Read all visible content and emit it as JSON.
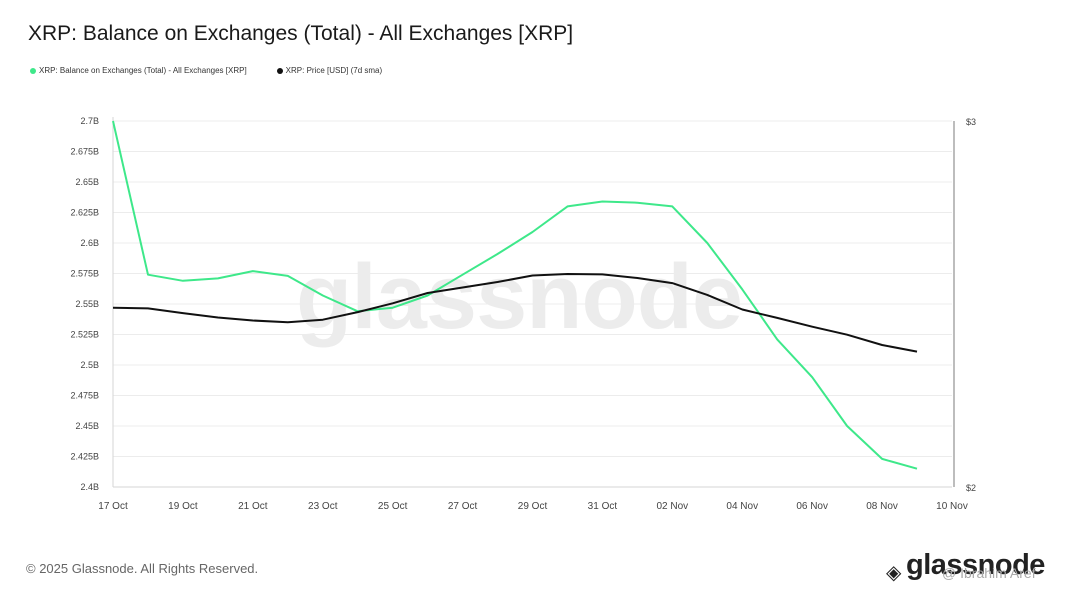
{
  "title": "XRP: Balance on Exchanges (Total) - All Exchanges [XRP]",
  "legend": [
    {
      "label": "XRP: Balance on Exchanges (Total) - All Exchanges [XRP]",
      "color": "#3ee88a"
    },
    {
      "label": "XRP: Price [USD] (7d sma)",
      "color": "#111111"
    }
  ],
  "watermark": "glassnode",
  "footer": "© 2025 Glassnode. All Rights Reserved.",
  "brand": "glassnode",
  "overlay_text": "@ Ibrahim Aref",
  "chart_data": {
    "type": "line",
    "x": [
      "17 Oct",
      "18 Oct",
      "19 Oct",
      "20 Oct",
      "21 Oct",
      "22 Oct",
      "23 Oct",
      "24 Oct",
      "25 Oct",
      "26 Oct",
      "27 Oct",
      "28 Oct",
      "29 Oct",
      "30 Oct",
      "31 Oct",
      "01 Nov",
      "02 Nov",
      "03 Nov",
      "04 Nov",
      "05 Nov",
      "06 Nov",
      "07 Nov",
      "08 Nov",
      "09 Nov"
    ],
    "x_tick_labels": [
      "17 Oct",
      "19 Oct",
      "21 Oct",
      "23 Oct",
      "25 Oct",
      "27 Oct",
      "29 Oct",
      "31 Oct",
      "02 Nov",
      "04 Nov",
      "06 Nov",
      "08 Nov",
      "10 Nov"
    ],
    "y_tick_labels": [
      "2.4B",
      "2.425B",
      "2.45B",
      "2.475B",
      "2.5B",
      "2.525B",
      "2.55B",
      "2.575B",
      "2.6B",
      "2.625B",
      "2.65B",
      "2.675B",
      "2.7B"
    ],
    "y2_tick_labels": [
      "$2",
      "$3"
    ],
    "ylim": [
      2.4,
      2.7
    ],
    "y2lim": [
      2,
      3
    ],
    "series": [
      {
        "name": "XRP: Balance on Exchanges (Total) - All Exchanges [XRP]",
        "axis": "left",
        "color": "#3ee88a",
        "values": [
          2.7,
          2.574,
          2.569,
          2.571,
          2.577,
          2.573,
          2.557,
          2.544,
          2.547,
          2.557,
          2.574,
          2.591,
          2.609,
          2.63,
          2.634,
          2.633,
          2.63,
          2.6,
          2.562,
          2.521,
          2.49,
          2.45,
          2.423,
          2.415
        ]
      },
      {
        "name": "XRP: Price [USD] (7d sma)",
        "axis": "right",
        "color": "#111111",
        "values": [
          2.49,
          2.488,
          2.475,
          2.463,
          2.455,
          2.45,
          2.457,
          2.478,
          2.502,
          2.53,
          2.545,
          2.56,
          2.578,
          2.582,
          2.581,
          2.571,
          2.557,
          2.525,
          2.485,
          2.462,
          2.438,
          2.416,
          2.388,
          2.37
        ]
      }
    ],
    "grid": true
  }
}
